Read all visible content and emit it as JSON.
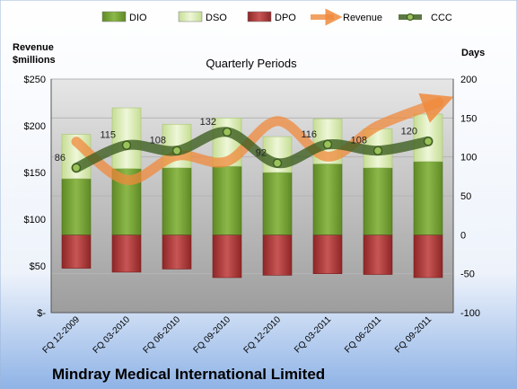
{
  "chart_data": {
    "type": "bar",
    "title": "Quarterly Periods",
    "footer_title": "Mindray Medical International Limited",
    "left_axis_label": [
      "Revenue",
      "$millions"
    ],
    "right_axis_label": "Days",
    "categories": [
      "FQ 12-2009",
      "FQ 03-2010",
      "FQ 06-2010",
      "FQ 09-2010",
      "FQ 12-2010",
      "FQ 03-2011",
      "FQ 06-2011",
      "FQ 09-2011"
    ],
    "left_ticks": [
      "$250",
      "$200",
      "$150",
      "$100",
      "$50",
      "$-"
    ],
    "right_ticks": [
      "200",
      "150",
      "100",
      "50",
      "0",
      "-50",
      "-100"
    ],
    "ylim_days": [
      -100,
      200
    ],
    "ylim_revenue": [
      0,
      250
    ],
    "legend": [
      "DIO",
      "DSO",
      "DPO",
      "Revenue",
      "CCC"
    ],
    "legend_placement": "top",
    "series": [
      {
        "name": "DIO",
        "axis": "days",
        "color": "#7aa33a",
        "values": [
          72,
          85,
          86,
          88,
          80,
          91,
          86,
          94
        ]
      },
      {
        "name": "DSO",
        "axis": "days",
        "color": "#dcecb8",
        "values": [
          57,
          78,
          56,
          62,
          46,
          58,
          50,
          61
        ]
      },
      {
        "name": "DPO",
        "axis": "days",
        "color": "#b83a3a",
        "values": [
          -43,
          -48,
          -44,
          -55,
          -52,
          -50,
          -51,
          -55
        ]
      },
      {
        "name": "Revenue",
        "axis": "revenue",
        "color": "#f08a3c",
        "values": [
          183,
          142,
          168,
          162,
          205,
          167,
          200,
          225
        ]
      },
      {
        "name": "CCC",
        "axis": "days",
        "color": "#4a6a2a",
        "values": [
          86,
          115,
          108,
          132,
          92,
          116,
          108,
          120
        ]
      }
    ],
    "data_labels": [
      "86",
      "115",
      "108",
      "132",
      "92",
      "116",
      "108",
      "120"
    ]
  }
}
